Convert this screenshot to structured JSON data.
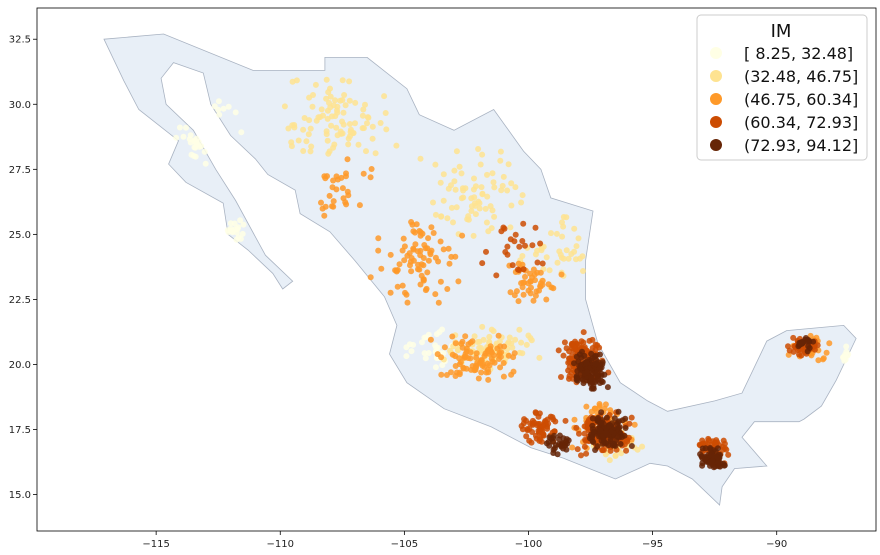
{
  "chart_data": {
    "type": "scatter",
    "title": "",
    "xlabel": "",
    "ylabel": "",
    "xlim": [
      -119.8,
      -86.0
    ],
    "ylim": [
      13.6,
      33.7
    ],
    "x_ticks": [
      -115,
      -110,
      -105,
      -100,
      -95,
      -90
    ],
    "y_ticks": [
      15.0,
      17.5,
      20.0,
      22.5,
      25.0,
      27.5,
      30.0,
      32.5
    ],
    "x_tick_labels": [
      "−115",
      "−110",
      "−105",
      "−100",
      "−95",
      "−90"
    ],
    "y_tick_labels": [
      "15.0",
      "17.5",
      "20.0",
      "22.5",
      "25.0",
      "27.5",
      "30.0",
      "32.5"
    ],
    "grid": false,
    "basemap": {
      "fill": "#e8eff7",
      "edge": "#a9b3c2",
      "outline": [
        [
          -117.1,
          32.5
        ],
        [
          -114.7,
          32.7
        ],
        [
          -111.1,
          31.3
        ],
        [
          -108.2,
          31.3
        ],
        [
          -108.2,
          31.8
        ],
        [
          -106.5,
          31.8
        ],
        [
          -104.9,
          30.6
        ],
        [
          -104.4,
          29.6
        ],
        [
          -103.0,
          29.0
        ],
        [
          -101.4,
          29.8
        ],
        [
          -100.2,
          28.2
        ],
        [
          -99.5,
          27.5
        ],
        [
          -99.1,
          26.4
        ],
        [
          -97.4,
          25.9
        ],
        [
          -97.7,
          24.0
        ],
        [
          -97.7,
          22.5
        ],
        [
          -97.2,
          20.8
        ],
        [
          -96.3,
          19.3
        ],
        [
          -95.2,
          18.6
        ],
        [
          -94.4,
          18.2
        ],
        [
          -92.5,
          18.6
        ],
        [
          -91.4,
          18.9
        ],
        [
          -90.4,
          20.9
        ],
        [
          -89.6,
          21.3
        ],
        [
          -87.3,
          21.5
        ],
        [
          -86.8,
          21.0
        ],
        [
          -87.6,
          19.4
        ],
        [
          -88.2,
          18.4
        ],
        [
          -88.9,
          17.9
        ],
        [
          -89.1,
          17.8
        ],
        [
          -90.9,
          17.8
        ],
        [
          -91.4,
          17.2
        ],
        [
          -90.4,
          16.1
        ],
        [
          -91.7,
          16.0
        ],
        [
          -92.2,
          15.3
        ],
        [
          -92.3,
          14.6
        ],
        [
          -93.4,
          15.6
        ],
        [
          -94.4,
          16.1
        ],
        [
          -95.1,
          16.2
        ],
        [
          -96.5,
          15.6
        ],
        [
          -98.6,
          16.4
        ],
        [
          -99.9,
          16.8
        ],
        [
          -101.5,
          17.6
        ],
        [
          -103.4,
          18.3
        ],
        [
          -104.9,
          19.3
        ],
        [
          -105.6,
          20.4
        ],
        [
          -105.3,
          21.5
        ],
        [
          -105.8,
          22.6
        ],
        [
          -107.0,
          24.0
        ],
        [
          -108.0,
          25.1
        ],
        [
          -109.2,
          25.8
        ],
        [
          -109.4,
          26.7
        ],
        [
          -110.5,
          27.3
        ],
        [
          -111.0,
          27.9
        ],
        [
          -112.0,
          28.8
        ],
        [
          -112.8,
          30.0
        ],
        [
          -113.1,
          31.2
        ],
        [
          -114.3,
          31.6
        ],
        [
          -114.8,
          31.0
        ],
        [
          -114.6,
          30.0
        ],
        [
          -113.5,
          29.0
        ],
        [
          -112.6,
          27.5
        ],
        [
          -111.8,
          26.3
        ],
        [
          -110.6,
          24.2
        ],
        [
          -109.5,
          23.2
        ],
        [
          -109.9,
          22.9
        ],
        [
          -110.3,
          23.5
        ],
        [
          -111.3,
          24.4
        ],
        [
          -112.1,
          25.0
        ],
        [
          -112.3,
          26.2
        ],
        [
          -113.8,
          27.0
        ],
        [
          -114.5,
          27.7
        ],
        [
          -114.1,
          28.6
        ],
        [
          -115.7,
          29.8
        ],
        [
          -116.3,
          30.9
        ],
        [
          -117.1,
          32.5
        ]
      ]
    },
    "legend": {
      "title": "IM",
      "position": "top-right",
      "entries": [
        {
          "label": "[ 8.25, 32.48]",
          "color": "#ffffe5"
        },
        {
          "label": "(32.48, 46.75]",
          "color": "#fee391"
        },
        {
          "label": "(46.75, 60.34]",
          "color": "#fe9929"
        },
        {
          "label": "(60.34, 72.93]",
          "color": "#cc4c02"
        },
        {
          "label": "(72.93, 94.12]",
          "color": "#662506"
        }
      ]
    },
    "clusters": [
      {
        "class": 0,
        "center": [
          -113.0,
          29.0
        ],
        "spread": [
          1.6,
          1.6
        ],
        "count": 30
      },
      {
        "class": 0,
        "center": [
          -112.3,
          24.8
        ],
        "spread": [
          1.0,
          1.2
        ],
        "count": 18
      },
      {
        "class": 0,
        "center": [
          -104.0,
          20.6
        ],
        "spread": [
          1.5,
          1.0
        ],
        "count": 30
      },
      {
        "class": 0,
        "center": [
          -87.0,
          20.0
        ],
        "spread": [
          0.4,
          0.8
        ],
        "count": 10
      },
      {
        "class": 1,
        "center": [
          -108.0,
          29.3
        ],
        "spread": [
          3.2,
          2.2
        ],
        "count": 95
      },
      {
        "class": 1,
        "center": [
          -102.0,
          26.5
        ],
        "spread": [
          2.8,
          2.5
        ],
        "count": 75
      },
      {
        "class": 1,
        "center": [
          -101.5,
          20.6
        ],
        "spread": [
          2.4,
          1.0
        ],
        "count": 80
      },
      {
        "class": 1,
        "center": [
          -99.0,
          24.5
        ],
        "spread": [
          1.8,
          1.8
        ],
        "count": 40
      },
      {
        "class": 1,
        "center": [
          -96.5,
          17.0
        ],
        "spread": [
          1.3,
          0.8
        ],
        "count": 40
      },
      {
        "class": 2,
        "center": [
          -104.5,
          24.0
        ],
        "spread": [
          2.2,
          2.5
        ],
        "count": 80
      },
      {
        "class": 2,
        "center": [
          -102.0,
          20.2
        ],
        "spread": [
          2.3,
          1.2
        ],
        "count": 95
      },
      {
        "class": 2,
        "center": [
          -99.8,
          23.2
        ],
        "spread": [
          1.4,
          1.2
        ],
        "count": 45
      },
      {
        "class": 2,
        "center": [
          -97.0,
          17.6
        ],
        "spread": [
          1.6,
          1.1
        ],
        "count": 90
      },
      {
        "class": 2,
        "center": [
          -88.6,
          20.6
        ],
        "spread": [
          1.2,
          0.7
        ],
        "count": 30
      },
      {
        "class": 2,
        "center": [
          -107.5,
          27.0
        ],
        "spread": [
          1.5,
          1.6
        ],
        "count": 30
      },
      {
        "class": 3,
        "center": [
          -97.8,
          20.2
        ],
        "spread": [
          1.2,
          1.3
        ],
        "count": 150
      },
      {
        "class": 3,
        "center": [
          -97.0,
          17.3
        ],
        "spread": [
          1.4,
          1.0
        ],
        "count": 140
      },
      {
        "class": 3,
        "center": [
          -99.5,
          17.6
        ],
        "spread": [
          1.2,
          0.8
        ],
        "count": 60
      },
      {
        "class": 3,
        "center": [
          -92.5,
          16.7
        ],
        "spread": [
          0.8,
          0.7
        ],
        "count": 55
      },
      {
        "class": 3,
        "center": [
          -88.9,
          20.7
        ],
        "spread": [
          0.8,
          0.5
        ],
        "count": 45
      },
      {
        "class": 3,
        "center": [
          -100.5,
          24.5
        ],
        "spread": [
          2.0,
          1.6
        ],
        "count": 25
      },
      {
        "class": 4,
        "center": [
          -97.5,
          19.8
        ],
        "spread": [
          0.9,
          1.1
        ],
        "count": 120
      },
      {
        "class": 4,
        "center": [
          -96.8,
          17.4
        ],
        "spread": [
          1.1,
          0.9
        ],
        "count": 110
      },
      {
        "class": 4,
        "center": [
          -92.6,
          16.4
        ],
        "spread": [
          0.7,
          0.7
        ],
        "count": 60
      },
      {
        "class": 4,
        "center": [
          -98.8,
          17.0
        ],
        "spread": [
          0.8,
          0.6
        ],
        "count": 30
      },
      {
        "class": 4,
        "center": [
          -88.8,
          20.8
        ],
        "spread": [
          0.6,
          0.4
        ],
        "count": 20
      }
    ]
  }
}
